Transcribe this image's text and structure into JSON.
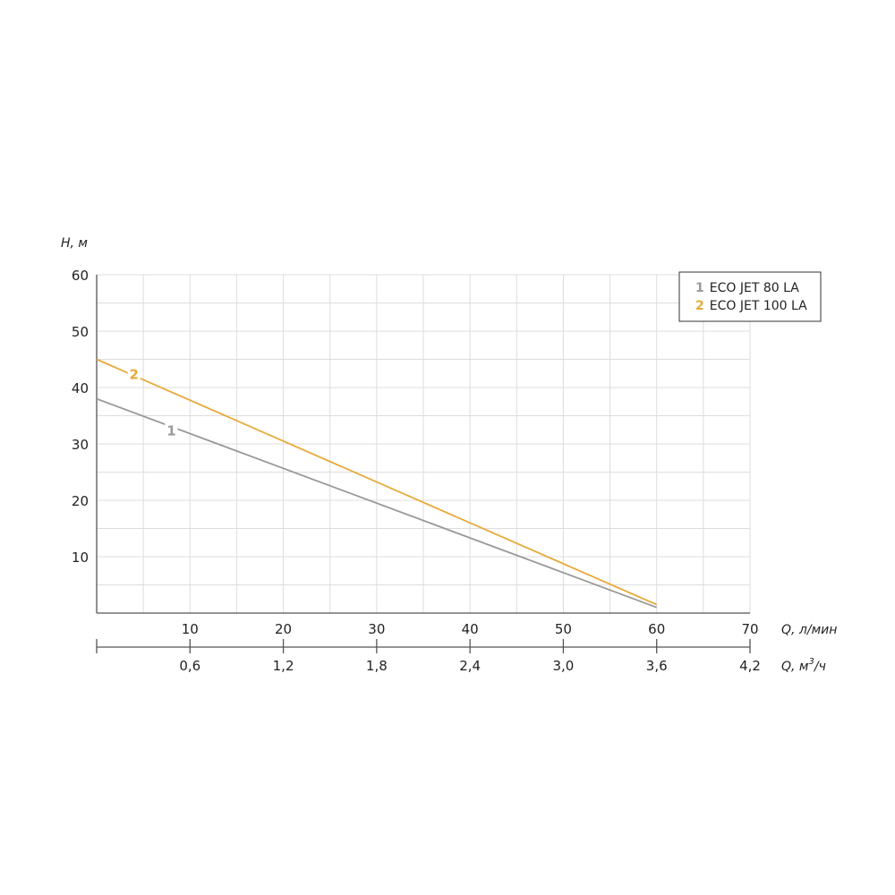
{
  "chart_data": {
    "type": "line",
    "ylabel": "H, м",
    "xlabel": "Q, л/мин",
    "x2label_main": "Q, м",
    "x2label_sup": "3",
    "x2label_tail": "/ч",
    "xlim": [
      0,
      70
    ],
    "ylim": [
      0,
      60
    ],
    "y_ticks": [
      10,
      20,
      30,
      40,
      50,
      60
    ],
    "x_ticks": [
      10,
      20,
      30,
      40,
      50,
      60,
      70
    ],
    "x_tick_labels": [
      "10",
      "20",
      "30",
      "40",
      "50",
      "60",
      "70"
    ],
    "x2_ticks": [
      10,
      20,
      30,
      40,
      50,
      60,
      70
    ],
    "x2_tick_labels": [
      "0,6",
      "1,2",
      "1,8",
      "2,4",
      "3,0",
      "3,6",
      "4,2"
    ],
    "grid": true,
    "legend_position": "top-right",
    "series": [
      {
        "number": "1",
        "name": "ECO JET 80 LA",
        "color": "#999999",
        "x": [
          0,
          60
        ],
        "y": [
          38,
          1
        ],
        "label_at": [
          8,
          32.5
        ]
      },
      {
        "number": "2",
        "name": "ECO JET 100 LA",
        "color": "#e8a93a",
        "x": [
          0,
          60
        ],
        "y": [
          45,
          1.5
        ],
        "label_at": [
          4,
          42.5
        ]
      }
    ]
  }
}
